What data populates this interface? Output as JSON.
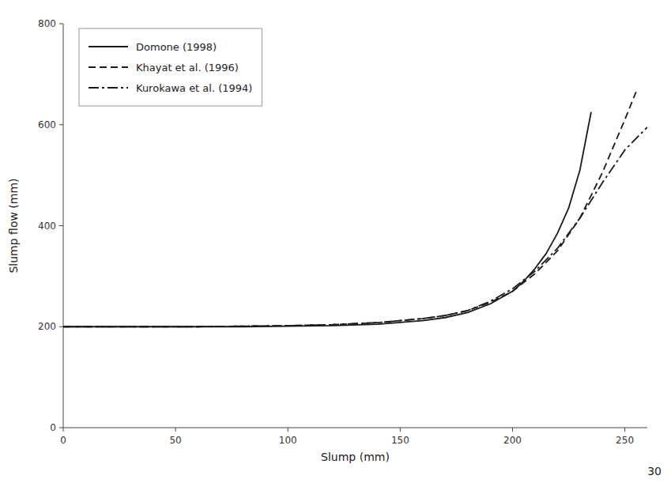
{
  "chart_data": {
    "type": "line",
    "title": "",
    "x_label": "Slump (mm)",
    "y_label": "Slump flow (mm)",
    "annotations": [
      "30"
    ],
    "xlim": [
      0,
      260
    ],
    "ylim": [
      0,
      800
    ],
    "xticks": [
      0,
      50,
      100,
      150,
      200,
      250
    ],
    "yticks": [
      0,
      200,
      400,
      600,
      800
    ],
    "grid": false,
    "legend": "upper left",
    "series": [
      {
        "name": "Domone (1998)",
        "color": "#1a1a1a",
        "line_style": "solid",
        "x": [
          0,
          20,
          40,
          60,
          80,
          100,
          120,
          140,
          160,
          170,
          180,
          190,
          200,
          205,
          210,
          215,
          220,
          225,
          230,
          235
        ],
        "values": [
          200,
          200,
          200,
          200,
          200,
          201,
          202,
          205,
          212,
          218,
          228,
          245,
          270,
          290,
          315,
          345,
          385,
          435,
          510,
          625
        ]
      },
      {
        "name": "Khayat et al. (1996)",
        "color": "#1a1a1a",
        "line_style": "dashed",
        "x": [
          0,
          20,
          40,
          60,
          80,
          100,
          120,
          140,
          160,
          170,
          180,
          190,
          200,
          210,
          220,
          230,
          240,
          250,
          255
        ],
        "values": [
          200,
          200,
          200,
          200,
          201,
          202,
          204,
          208,
          216,
          222,
          232,
          248,
          270,
          305,
          350,
          415,
          505,
          610,
          665
        ]
      },
      {
        "name": "Kurokawa et al. (1994)",
        "color": "#1a1a1a",
        "line_style": "dashdot",
        "x": [
          0,
          20,
          40,
          60,
          80,
          100,
          120,
          140,
          160,
          170,
          180,
          190,
          200,
          210,
          220,
          230,
          240,
          250,
          260
        ],
        "values": [
          200,
          200,
          200,
          200,
          201,
          202,
          204,
          208,
          216,
          222,
          232,
          250,
          275,
          310,
          355,
          415,
          485,
          550,
          595
        ]
      }
    ]
  }
}
